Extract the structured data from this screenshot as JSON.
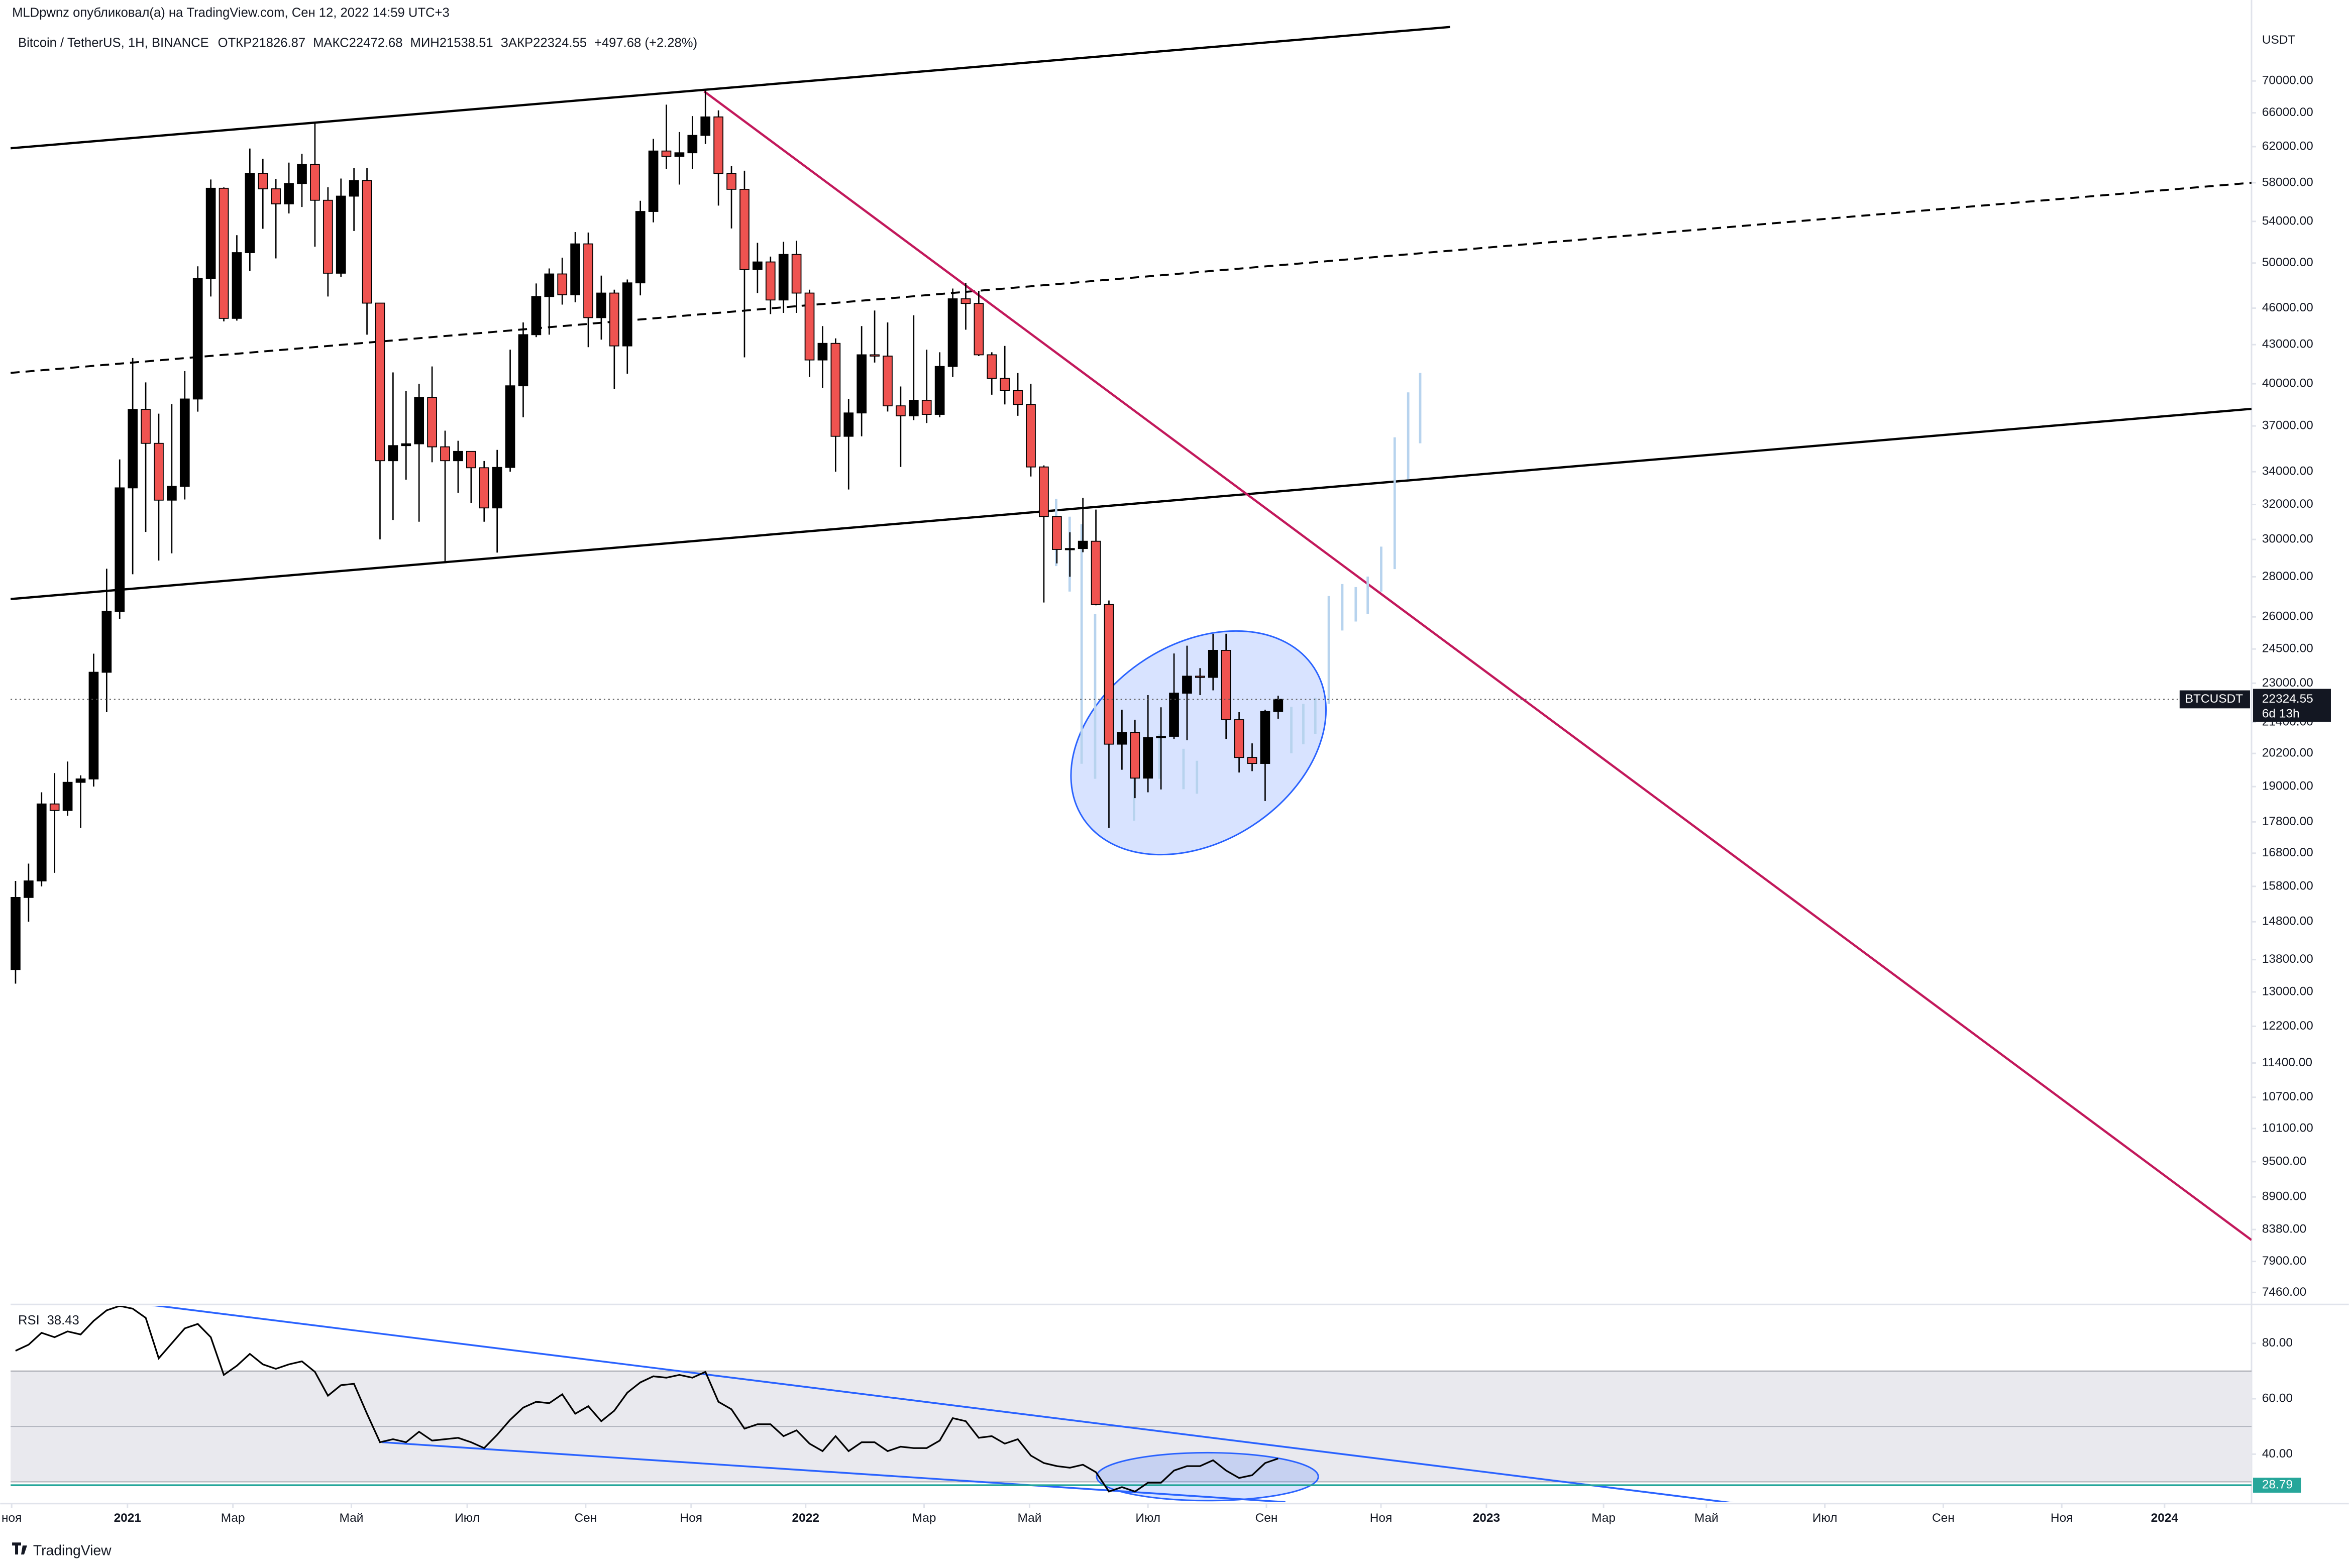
{
  "page": {
    "byline": "MLDpwnz опубликовал(а) на TradingView.com, Сен 12, 2022 14:59 UTC+3",
    "brand": "TradingView"
  },
  "chart_data": [
    {
      "type": "candlestick",
      "title": "Bitcoin / TetherUS, 1H, BINANCE",
      "symbol": "BTCUSDT",
      "countdown": "6d 13h",
      "y_unit": "USDT",
      "legend_labels": {
        "open": "ОТКР",
        "high": "МАКС",
        "low": "МИН",
        "close": "ЗАКР"
      },
      "change": "+497.68 (+2.28%)",
      "up_color": "#000000",
      "down_color": "#ef5350",
      "log_scale": true,
      "grid": false,
      "x": [
        -9,
        -8,
        -7,
        -6,
        -5,
        -4,
        -3,
        -2,
        -1,
        0,
        1,
        2,
        3,
        4,
        5,
        6,
        7,
        8,
        9,
        10,
        11,
        12,
        13,
        14,
        15,
        16,
        17,
        18,
        19,
        20,
        21,
        22,
        23,
        24,
        25,
        26,
        27,
        28,
        29,
        30,
        31,
        32,
        33,
        34,
        35,
        36,
        37,
        38,
        39,
        40,
        41,
        42,
        43,
        44,
        45,
        46,
        47,
        48,
        49,
        50,
        51,
        52,
        53,
        54,
        55,
        56,
        57,
        58,
        59,
        60,
        61,
        62,
        63,
        64,
        65,
        66,
        67,
        68,
        69,
        70,
        71,
        72,
        73,
        74,
        75,
        76,
        77,
        78,
        79,
        80,
        81,
        82,
        83,
        84,
        85,
        86,
        87,
        88
      ],
      "open": [
        13550,
        15480,
        15960,
        18400,
        18180,
        19150,
        19270,
        23470,
        26270,
        33000,
        38150,
        35830,
        32260,
        33090,
        38890,
        48580,
        57410,
        45140,
        50970,
        59020,
        57350,
        55780,
        57920,
        60000,
        56150,
        49070,
        56580,
        58240,
        46430,
        34700,
        35680,
        35800,
        39000,
        35600,
        34700,
        35300,
        34250,
        31800,
        34270,
        39850,
        43800,
        47000,
        49000,
        47150,
        51800,
        45200,
        47300,
        42900,
        48200,
        55000,
        61500,
        60900,
        61300,
        63300,
        65500,
        59000,
        57300,
        49400,
        50100,
        46700,
        50800,
        47300,
        41800,
        43100,
        36300,
        37900,
        42200,
        42100,
        38400,
        37700,
        38800,
        37800,
        41300,
        46800,
        46400,
        42200,
        40400,
        39500,
        38500,
        34300,
        31300,
        29450,
        29500,
        29900,
        26600,
        20550,
        21000,
        19300,
        20800,
        20850,
        22580,
        23300,
        23250,
        24440,
        21500,
        20050,
        19830,
        21826.87
      ],
      "high": [
        15960,
        16480,
        18800,
        19480,
        19900,
        19400,
        24290,
        28420,
        34780,
        41950,
        40100,
        37850,
        38530,
        40950,
        49700,
        58350,
        57500,
        52640,
        61780,
        60630,
        58400,
        60200,
        61180,
        64850,
        57520,
        58450,
        59600,
        59600,
        46450,
        40850,
        39480,
        40000,
        41300,
        36680,
        36000,
        35300,
        34680,
        35400,
        42600,
        44800,
        48150,
        49500,
        50500,
        52950,
        52900,
        48850,
        47600,
        48500,
        56100,
        62900,
        67000,
        63700,
        65600,
        69000,
        66300,
        59800,
        59300,
        51900,
        50600,
        52000,
        52100,
        47600,
        44500,
        43500,
        38900,
        44500,
        45800,
        44800,
        39800,
        45400,
        42600,
        42400,
        47700,
        48200,
        47500,
        42400,
        42900,
        40800,
        40000,
        34400,
        31300,
        30400,
        32400,
        31700,
        26800,
        21900,
        21500,
        22500,
        22000,
        24300,
        24650,
        23650,
        25200,
        25200,
        21800,
        20580,
        21900,
        22472.68
      ],
      "low": [
        13200,
        14800,
        15800,
        16200,
        18000,
        17600,
        19000,
        21800,
        25900,
        28130,
        30420,
        28850,
        29240,
        32300,
        37990,
        47000,
        44890,
        44950,
        49270,
        53270,
        50430,
        54800,
        55460,
        51530,
        47000,
        48750,
        53050,
        43800,
        30000,
        31100,
        33500,
        31000,
        34600,
        28800,
        32700,
        32100,
        31000,
        29280,
        34000,
        37600,
        43600,
        43800,
        46300,
        46500,
        42800,
        43400,
        39600,
        40750,
        47100,
        53900,
        59500,
        57800,
        59500,
        62300,
        55600,
        53300,
        42000,
        47300,
        45500,
        45600,
        45600,
        40500,
        39700,
        34000,
        32900,
        36300,
        41600,
        38000,
        34300,
        37400,
        37200,
        37600,
        40500,
        44200,
        42100,
        39200,
        38500,
        37700,
        33700,
        26700,
        28700,
        28000,
        29300,
        26560,
        17600,
        19600,
        18600,
        18800,
        18900,
        20750,
        20700,
        22500,
        22700,
        20750,
        19500,
        19550,
        18500,
        21538.51
      ],
      "close": [
        15480,
        15960,
        18400,
        18180,
        19150,
        19270,
        23470,
        26270,
        33000,
        38150,
        35830,
        32260,
        33090,
        38890,
        48580,
        57410,
        45140,
        50970,
        59020,
        57350,
        55780,
        57920,
        60000,
        56150,
        49070,
        56580,
        58240,
        46430,
        34700,
        35680,
        35800,
        39000,
        35600,
        34700,
        35300,
        34250,
        31800,
        34270,
        39850,
        43800,
        47000,
        49000,
        47150,
        51800,
        45200,
        47300,
        42900,
        48200,
        55000,
        61500,
        60900,
        61300,
        63300,
        65500,
        59000,
        57300,
        49400,
        50100,
        46700,
        50800,
        47300,
        41800,
        43100,
        36300,
        37900,
        42200,
        42100,
        38400,
        37700,
        38800,
        37800,
        41300,
        46800,
        46400,
        42200,
        40400,
        39500,
        38500,
        34300,
        31300,
        29450,
        29500,
        29900,
        26600,
        20550,
        21000,
        19300,
        20800,
        20850,
        22580,
        23300,
        23250,
        24440,
        21500,
        20050,
        19830,
        21826.87,
        22324.55
      ],
      "xlim": [
        -9.38,
        162.78
      ],
      "xticks": [
        {
          "value": -9.3,
          "label": "ноя"
        },
        {
          "value": -0.4,
          "label": "2021"
        },
        {
          "value": 7.7,
          "label": "Мар"
        },
        {
          "value": 16.8,
          "label": "Май"
        },
        {
          "value": 25.7,
          "label": "Июл"
        },
        {
          "value": 34.8,
          "label": "Сен"
        },
        {
          "value": 42.9,
          "label": "Ноя"
        },
        {
          "value": 51.7,
          "label": "2022"
        },
        {
          "value": 60.8,
          "label": "Мар"
        },
        {
          "value": 68.9,
          "label": "Май"
        },
        {
          "value": 78.0,
          "label": "Июл"
        },
        {
          "value": 87.1,
          "label": "Сен"
        },
        {
          "value": 95.9,
          "label": "Ноя"
        },
        {
          "value": 104.0,
          "label": "2023"
        },
        {
          "value": 113.0,
          "label": "Мар"
        },
        {
          "value": 120.9,
          "label": "Май"
        },
        {
          "value": 130.0,
          "label": "Июл"
        },
        {
          "value": 139.1,
          "label": "Сен"
        },
        {
          "value": 148.2,
          "label": "Ноя"
        },
        {
          "value": 156.1,
          "label": "2024"
        }
      ],
      "ylim": [
        7317,
        79080
      ],
      "yticks": [
        {
          "value": 70000,
          "label": "70000.00"
        },
        {
          "value": 66000,
          "label": "66000.00"
        },
        {
          "value": 62000,
          "label": "62000.00"
        },
        {
          "value": 58000,
          "label": "58000.00"
        },
        {
          "value": 54000,
          "label": "54000.00"
        },
        {
          "value": 50000,
          "label": "50000.00"
        },
        {
          "value": 46000,
          "label": "46000.00"
        },
        {
          "value": 43000,
          "label": "43000.00"
        },
        {
          "value": 40000,
          "label": "40000.00"
        },
        {
          "value": 37000,
          "label": "37000.00"
        },
        {
          "value": 34000,
          "label": "34000.00"
        },
        {
          "value": 32000,
          "label": "32000.00"
        },
        {
          "value": 30000,
          "label": "30000.00"
        },
        {
          "value": 28000,
          "label": "28000.00"
        },
        {
          "value": 26000,
          "label": "26000.00"
        },
        {
          "value": 24500,
          "label": "24500.00"
        },
        {
          "value": 23000,
          "label": "23000.00"
        },
        {
          "value": 21400,
          "label": "21400.00"
        },
        {
          "value": 20200,
          "label": "20200.00"
        },
        {
          "value": 19000,
          "label": "19000.00"
        },
        {
          "value": 17800,
          "label": "17800.00"
        },
        {
          "value": 16800,
          "label": "16800.00"
        },
        {
          "value": 15800,
          "label": "15800.00"
        },
        {
          "value": 14800,
          "label": "14800.00"
        },
        {
          "value": 13800,
          "label": "13800.00"
        },
        {
          "value": 13000,
          "label": "13000.00"
        },
        {
          "value": 12200,
          "label": "12200.00"
        },
        {
          "value": 11400,
          "label": "11400.00"
        },
        {
          "value": 10700,
          "label": "10700.00"
        },
        {
          "value": 10100,
          "label": "10100.00"
        },
        {
          "value": 9500,
          "label": "9500.00"
        },
        {
          "value": 8900,
          "label": "8900.00"
        },
        {
          "value": 8380,
          "label": "8380.00"
        },
        {
          "value": 7900,
          "label": "7900.00"
        },
        {
          "value": 7460,
          "label": "7460.00"
        }
      ]
    },
    {
      "type": "line",
      "title": "RSI",
      "color": "#000000",
      "band": [
        30,
        70
      ],
      "midline": 50,
      "level": 28.79,
      "level_color": "#26a69a",
      "x": [
        -9,
        -8,
        -7,
        -6,
        -5,
        -4,
        -3,
        -2,
        -1,
        0,
        1,
        2,
        3,
        4,
        5,
        6,
        7,
        8,
        9,
        10,
        11,
        12,
        13,
        14,
        15,
        16,
        17,
        18,
        19,
        20,
        21,
        22,
        23,
        24,
        25,
        26,
        27,
        28,
        29,
        30,
        31,
        32,
        33,
        34,
        35,
        36,
        37,
        38,
        39,
        40,
        41,
        42,
        43,
        44,
        45,
        46,
        47,
        48,
        49,
        50,
        51,
        52,
        53,
        54,
        55,
        56,
        57,
        58,
        59,
        60,
        61,
        62,
        63,
        64,
        65,
        66,
        67,
        68,
        69,
        70,
        71,
        72,
        73,
        74,
        75,
        76,
        77,
        78,
        79,
        80,
        81,
        82,
        83,
        84,
        85,
        86,
        87,
        88
      ],
      "values": [
        77.3,
        79.5,
        83.8,
        82.2,
        84.3,
        83.2,
        88.1,
        91.9,
        93.5,
        92.5,
        89.2,
        74.6,
        80.0,
        85.4,
        87.0,
        82.2,
        68.6,
        71.9,
        76.2,
        72.4,
        70.8,
        72.4,
        73.5,
        69.7,
        61.1,
        64.9,
        65.4,
        54.6,
        44.3,
        45.4,
        44.3,
        48.1,
        44.9,
        45.4,
        45.9,
        44.3,
        42.2,
        47.0,
        52.4,
        56.8,
        58.9,
        58.4,
        61.6,
        54.6,
        57.3,
        51.9,
        55.7,
        62.2,
        65.9,
        68.1,
        67.6,
        68.6,
        67.6,
        69.7,
        58.9,
        56.2,
        49.2,
        50.8,
        50.8,
        46.5,
        48.6,
        43.8,
        41.1,
        46.5,
        41.1,
        44.3,
        44.3,
        41.1,
        42.7,
        42.2,
        42.2,
        44.9,
        53.0,
        51.9,
        45.9,
        46.5,
        43.8,
        45.4,
        39.5,
        36.8,
        35.7,
        35.1,
        36.2,
        33.5,
        26.5,
        28.1,
        26.5,
        29.7,
        29.7,
        34.1,
        35.7,
        35.7,
        37.8,
        34.1,
        31.4,
        32.4,
        36.8,
        38.43
      ],
      "ylim": [
        22.7,
        93.5
      ],
      "yticks": [
        {
          "value": 80,
          "label": "80.00"
        },
        {
          "value": 60,
          "label": "60.00"
        },
        {
          "value": 40,
          "label": "40.00"
        }
      ]
    }
  ]
}
